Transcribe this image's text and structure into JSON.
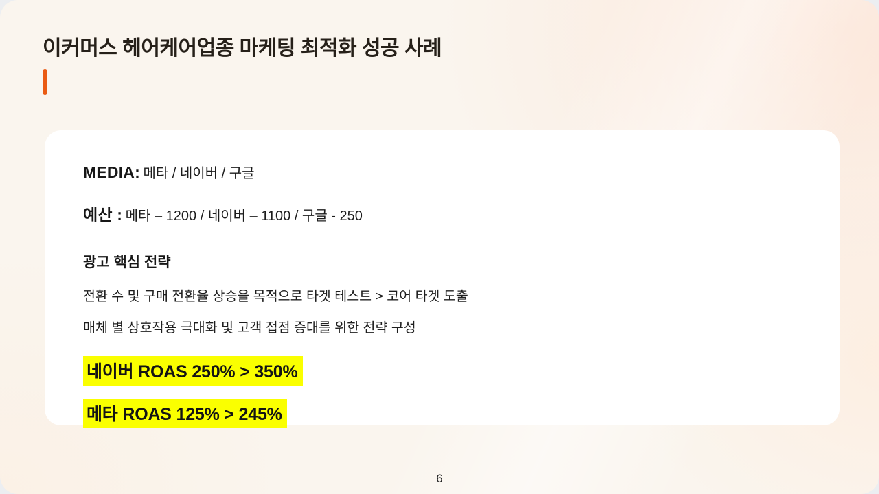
{
  "slide": {
    "title": "이커머스 헤어케어업종 마케팅 최적화 성공 사례",
    "page_number": "6",
    "colors": {
      "accent": "#EA5B13",
      "highlight": "#FAFF00",
      "card_background": "#FFFFFF",
      "slide_cream": "#FAF5EE",
      "slide_peach": "#FCE7DA"
    },
    "card": {
      "media_label": "MEDIA:",
      "media_value": "메타 / 네이버 / 구글",
      "budget_label": "예산 :",
      "budget_value": "메타 – 1200 / 네이버 – 1100 / 구글 - 250",
      "strategy_heading": "광고 핵심 전략",
      "strategy_lines": [
        "전환 수 및 구매 전환율 상승을 목적으로 타겟 테스트 > 코어 타겟 도출",
        "매체 별 상호작용 극대화 및 고객 접점 증대를 위한 전략 구성"
      ],
      "results": [
        "네이버 ROAS 250% > 350%",
        "메타 ROAS 125% > 245%"
      ]
    }
  }
}
